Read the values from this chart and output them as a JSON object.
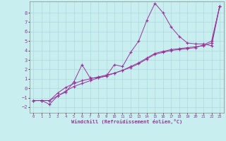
{
  "xlabel": "Windchill (Refroidissement éolien,°C)",
  "background_color": "#c8eef0",
  "grid_color": "#b0d8dc",
  "line_color": "#993399",
  "x_ticks": [
    0,
    1,
    2,
    3,
    4,
    5,
    6,
    7,
    8,
    9,
    10,
    11,
    12,
    13,
    14,
    15,
    16,
    17,
    18,
    19,
    20,
    21,
    22,
    23
  ],
  "y_ticks": [
    -2,
    -1,
    0,
    1,
    2,
    3,
    4,
    5,
    6,
    7,
    8
  ],
  "xlim": [
    -0.5,
    23.5
  ],
  "ylim": [
    -2.6,
    9.2
  ],
  "series": [
    {
      "x": [
        0,
        1,
        2,
        3,
        4,
        5,
        6,
        7,
        8,
        9,
        10,
        11,
        12,
        13,
        14,
        15,
        16,
        17,
        18,
        19,
        20,
        21,
        22,
        23
      ],
      "y": [
        -1.3,
        -1.3,
        -1.7,
        -0.8,
        -0.4,
        0.7,
        2.5,
        1.1,
        1.1,
        1.3,
        2.5,
        2.3,
        3.8,
        5.0,
        7.2,
        9.0,
        8.0,
        6.5,
        5.5,
        4.8,
        4.7,
        4.7,
        4.5,
        8.7
      ]
    },
    {
      "x": [
        0,
        1,
        2,
        3,
        4,
        5,
        6,
        7,
        8,
        9,
        10,
        11,
        12,
        13,
        14,
        15,
        16,
        17,
        18,
        19,
        20,
        21,
        22,
        23
      ],
      "y": [
        -1.3,
        -1.3,
        -1.3,
        -0.5,
        0.1,
        0.5,
        0.8,
        1.0,
        1.2,
        1.4,
        1.6,
        1.9,
        2.2,
        2.6,
        3.1,
        3.6,
        3.8,
        4.0,
        4.1,
        4.2,
        4.3,
        4.6,
        5.0,
        8.7
      ]
    },
    {
      "x": [
        0,
        1,
        2,
        3,
        4,
        5,
        6,
        7,
        8,
        9,
        10,
        11,
        12,
        13,
        14,
        15,
        16,
        17,
        18,
        19,
        20,
        21,
        22,
        23
      ],
      "y": [
        -1.3,
        -1.3,
        -1.3,
        -0.8,
        -0.3,
        0.2,
        0.5,
        0.8,
        1.1,
        1.3,
        1.6,
        1.9,
        2.3,
        2.7,
        3.2,
        3.7,
        3.9,
        4.1,
        4.2,
        4.3,
        4.4,
        4.5,
        4.8,
        8.7
      ]
    }
  ]
}
